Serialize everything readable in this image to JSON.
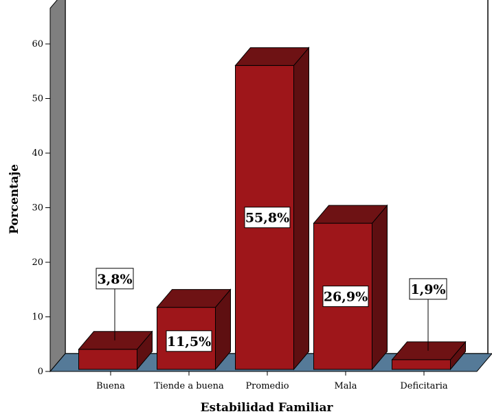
{
  "chart_data": {
    "type": "bar",
    "categories": [
      "Buena",
      "Tiende a buena",
      "Promedio",
      "Mala",
      "Deficitaria"
    ],
    "values": [
      3.8,
      11.5,
      55.8,
      26.9,
      1.9
    ],
    "data_labels": [
      "3,8%",
      "11,5%",
      "55,8%",
      "26,9%",
      "1,9%"
    ],
    "xlabel": "Estabilidad Familiar",
    "ylabel": "Porcentaje",
    "ylim": [
      0,
      60
    ],
    "yticks": [
      "0",
      "10",
      "20",
      "30",
      "40",
      "50",
      "60"
    ],
    "style": "3d",
    "colors": {
      "bar_front": "#9e161a",
      "bar_top": "#6e1214",
      "bar_side": "#5e0f11",
      "back_wall": "#ffffff",
      "side_wall": "#7f7f7f",
      "floor": "#557a98"
    }
  }
}
